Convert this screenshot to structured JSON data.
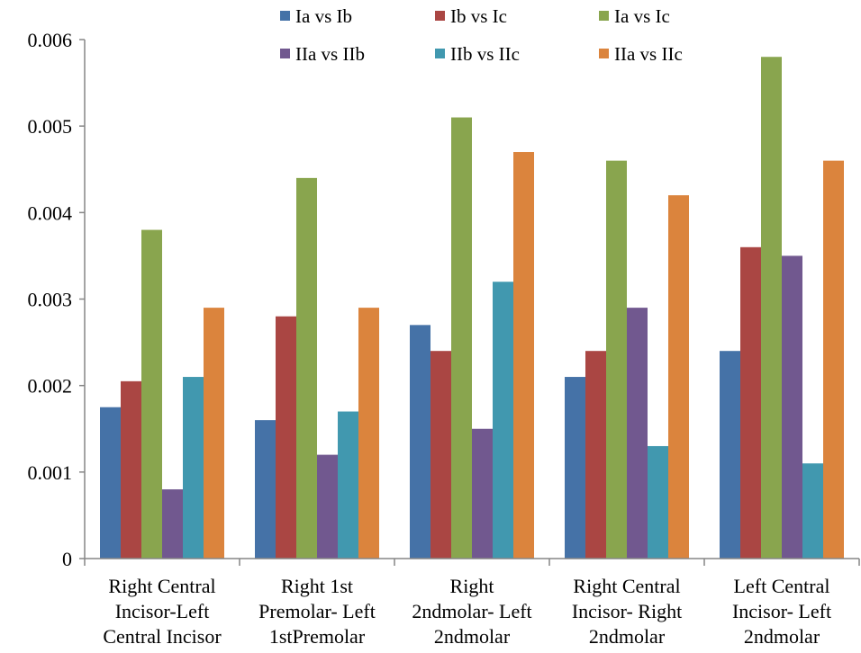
{
  "chart_data": {
    "type": "bar",
    "title": "",
    "xlabel": "",
    "ylabel": "",
    "ylim": [
      0,
      0.006
    ],
    "yticks": [
      "0",
      "0.001",
      "0.002",
      "0.003",
      "0.004",
      "0.005",
      "0.006"
    ],
    "grid": false,
    "legend_position": "top",
    "categories": [
      [
        "Right Central",
        "Incisor-Left",
        "Central Incisor"
      ],
      [
        "Right 1st",
        "Premolar- Left",
        "1stPremolar"
      ],
      [
        "Right",
        "2ndmolar- Left",
        "2ndmolar"
      ],
      [
        "Right Central",
        "Incisor- Right",
        "2ndmolar"
      ],
      [
        "Left Central",
        "Incisor- Left",
        "2ndmolar"
      ]
    ],
    "series": [
      {
        "name": "Ia vs Ib",
        "color": "#4572A7",
        "values": [
          0.00175,
          0.0016,
          0.0027,
          0.0021,
          0.0024
        ]
      },
      {
        "name": "Ib vs Ic",
        "color": "#AA4643",
        "values": [
          0.00205,
          0.0028,
          0.0024,
          0.0024,
          0.0036
        ]
      },
      {
        "name": "Ia vs Ic",
        "color": "#89A54E",
        "values": [
          0.0038,
          0.0044,
          0.0051,
          0.0046,
          0.0058
        ]
      },
      {
        "name": "IIa vs IIb",
        "color": "#71588F",
        "values": [
          0.0008,
          0.0012,
          0.0015,
          0.0029,
          0.0035
        ]
      },
      {
        "name": "IIb vs IIc",
        "color": "#4198AF",
        "values": [
          0.0021,
          0.0017,
          0.0032,
          0.0013,
          0.0011
        ]
      },
      {
        "name": "IIa vs IIc",
        "color": "#DB843D",
        "values": [
          0.0029,
          0.0029,
          0.0047,
          0.0042,
          0.0046
        ]
      }
    ]
  }
}
